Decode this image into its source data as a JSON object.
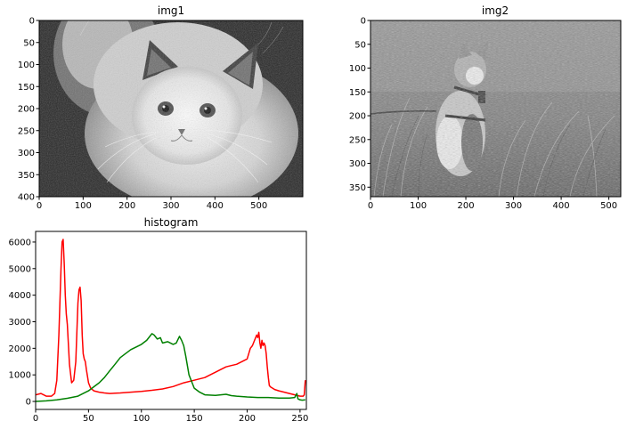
{
  "chart_data": [
    {
      "type": "image",
      "title": "img1",
      "image_description": "grayscale photo of a fluffy long-haired kitten looking up",
      "xlim": [
        0,
        600
      ],
      "ylim": [
        400,
        0
      ],
      "xticks": [
        0,
        100,
        200,
        300,
        400,
        500
      ],
      "yticks": [
        0,
        50,
        100,
        150,
        200,
        250,
        300,
        350,
        400
      ]
    },
    {
      "type": "image",
      "title": "img2",
      "image_description": "grayscale photo of a harnessed tabby cat sitting in tall grass",
      "xlim": [
        0,
        525
      ],
      "ylim": [
        370,
        0
      ],
      "xticks": [
        0,
        100,
        200,
        300,
        400,
        500
      ],
      "yticks": [
        0,
        50,
        100,
        150,
        200,
        250,
        300,
        350
      ]
    },
    {
      "type": "line",
      "title": "histogram",
      "xlim": [
        0,
        256
      ],
      "ylim": [
        -300,
        6400
      ],
      "xticks": [
        0,
        50,
        100,
        150,
        200,
        250
      ],
      "yticks": [
        0,
        1000,
        2000,
        3000,
        4000,
        5000,
        6000
      ],
      "series": [
        {
          "color": "#ff0000",
          "x": [
            0,
            5,
            10,
            15,
            18,
            20,
            22,
            24,
            25,
            26,
            27,
            28,
            29,
            30,
            32,
            34,
            36,
            38,
            40,
            41,
            42,
            43,
            44,
            45,
            46,
            47,
            48,
            50,
            52,
            55,
            60,
            65,
            70,
            80,
            90,
            100,
            110,
            120,
            130,
            140,
            150,
            160,
            165,
            170,
            175,
            180,
            185,
            190,
            195,
            200,
            203,
            205,
            207,
            209,
            210,
            211,
            212,
            213,
            214,
            215,
            216,
            217,
            218,
            219,
            220,
            221,
            222,
            224,
            226,
            230,
            235,
            240,
            245,
            250,
            253,
            254,
            255
          ],
          "y": [
            250,
            300,
            200,
            200,
            300,
            800,
            2500,
            5000,
            6000,
            6100,
            5200,
            4000,
            3300,
            2900,
            1400,
            700,
            800,
            1500,
            3700,
            4200,
            4300,
            3800,
            2500,
            1800,
            1600,
            1500,
            1200,
            700,
            500,
            400,
            350,
            320,
            300,
            320,
            350,
            380,
            420,
            470,
            560,
            700,
            800,
            900,
            1000,
            1100,
            1200,
            1300,
            1350,
            1400,
            1500,
            1600,
            2000,
            2100,
            2300,
            2500,
            2400,
            2600,
            2200,
            2000,
            2300,
            2100,
            2200,
            2100,
            1800,
            1300,
            900,
            600,
            550,
            500,
            450,
            400,
            350,
            300,
            250,
            200,
            200,
            250,
            800
          ]
        },
        {
          "color": "#008000",
          "x": [
            0,
            10,
            20,
            30,
            40,
            45,
            50,
            55,
            60,
            65,
            70,
            75,
            80,
            85,
            90,
            95,
            100,
            105,
            110,
            112,
            115,
            118,
            120,
            125,
            130,
            133,
            136,
            138,
            140,
            142,
            145,
            150,
            155,
            160,
            170,
            180,
            185,
            190,
            200,
            210,
            220,
            230,
            240,
            245,
            247,
            248,
            249,
            250,
            252,
            255
          ],
          "y": [
            0,
            20,
            60,
            120,
            200,
            300,
            400,
            550,
            700,
            900,
            1150,
            1400,
            1650,
            1800,
            1950,
            2050,
            2150,
            2300,
            2550,
            2500,
            2350,
            2400,
            2200,
            2250,
            2150,
            2200,
            2450,
            2300,
            2100,
            1700,
            1000,
            500,
            350,
            250,
            230,
            270,
            220,
            200,
            170,
            150,
            150,
            130,
            130,
            150,
            300,
            100,
            80,
            60,
            50,
            60
          ]
        }
      ]
    }
  ]
}
